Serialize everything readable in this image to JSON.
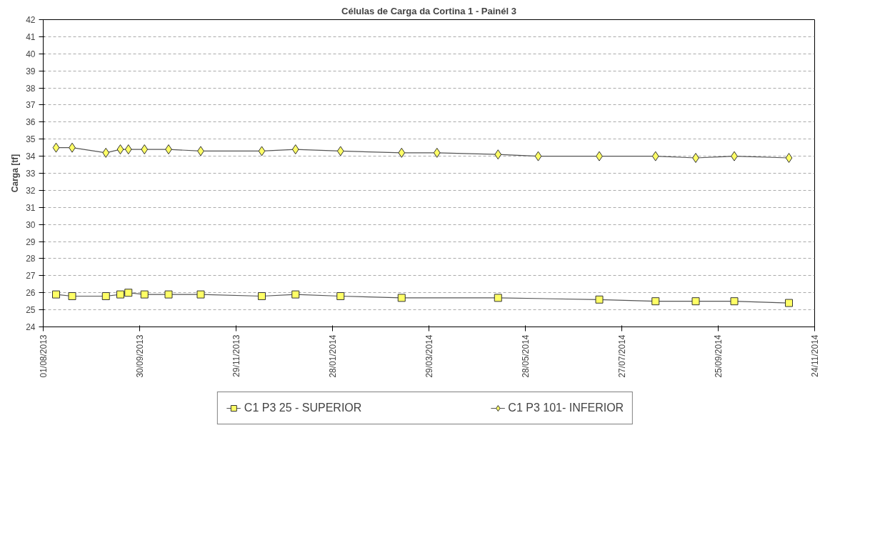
{
  "chart_data": {
    "type": "line",
    "title": "Células de Carga da Cortina 1 - Painél 3",
    "ylabel": "Carga [tf]",
    "xlim": [
      "2013-08-01",
      "2014-11-24"
    ],
    "xticks": [
      {
        "value": "2013-08-01",
        "label": "01/08/2013"
      },
      {
        "value": "2013-09-30",
        "label": "30/09/2013"
      },
      {
        "value": "2013-11-29",
        "label": "29/11/2013"
      },
      {
        "value": "2014-01-28",
        "label": "28/01/2014"
      },
      {
        "value": "2014-03-29",
        "label": "29/03/2014"
      },
      {
        "value": "2014-05-28",
        "label": "28/05/2014"
      },
      {
        "value": "2014-07-27",
        "label": "27/07/2014"
      },
      {
        "value": "2014-09-25",
        "label": "25/09/2014"
      },
      {
        "value": "2014-11-24",
        "label": "24/11/2014"
      }
    ],
    "ylim": [
      24,
      42
    ],
    "yticks": [
      24,
      25,
      26,
      27,
      28,
      29,
      30,
      31,
      32,
      33,
      34,
      35,
      36,
      37,
      38,
      39,
      40,
      41,
      42
    ],
    "grid": true,
    "legend": "bottom",
    "series": [
      {
        "name": "C1 P3 25 - SUPERIOR",
        "color": "#ffff66",
        "marker": "square",
        "x": [
          "2013-08-09",
          "2013-08-19",
          "2013-09-09",
          "2013-09-18",
          "2013-09-23",
          "2013-10-03",
          "2013-10-18",
          "2013-11-07",
          "2013-12-15",
          "2014-01-05",
          "2014-02-02",
          "2014-03-12",
          "2014-05-11",
          "2014-07-13",
          "2014-08-17",
          "2014-09-11",
          "2014-10-05",
          "2014-11-08"
        ],
        "values": [
          25.9,
          25.8,
          25.8,
          25.9,
          26.0,
          25.9,
          25.9,
          25.9,
          25.8,
          25.9,
          25.8,
          25.7,
          25.7,
          25.6,
          25.5,
          25.5,
          25.5,
          25.4
        ]
      },
      {
        "name": "C1 P3 101- INFERIOR",
        "color": "#ffff66",
        "marker": "diamond",
        "x": [
          "2013-08-09",
          "2013-08-19",
          "2013-09-09",
          "2013-09-18",
          "2013-09-23",
          "2013-10-03",
          "2013-10-18",
          "2013-11-07",
          "2013-12-15",
          "2014-01-05",
          "2014-02-02",
          "2014-03-12",
          "2014-04-03",
          "2014-05-11",
          "2014-06-05",
          "2014-07-13",
          "2014-08-17",
          "2014-09-11",
          "2014-10-05",
          "2014-11-08"
        ],
        "values": [
          34.5,
          34.5,
          34.2,
          34.4,
          34.4,
          34.4,
          34.4,
          34.3,
          34.3,
          34.4,
          34.3,
          34.2,
          34.2,
          34.1,
          34.0,
          34.0,
          34.0,
          33.9,
          34.0,
          33.9
        ]
      }
    ]
  }
}
